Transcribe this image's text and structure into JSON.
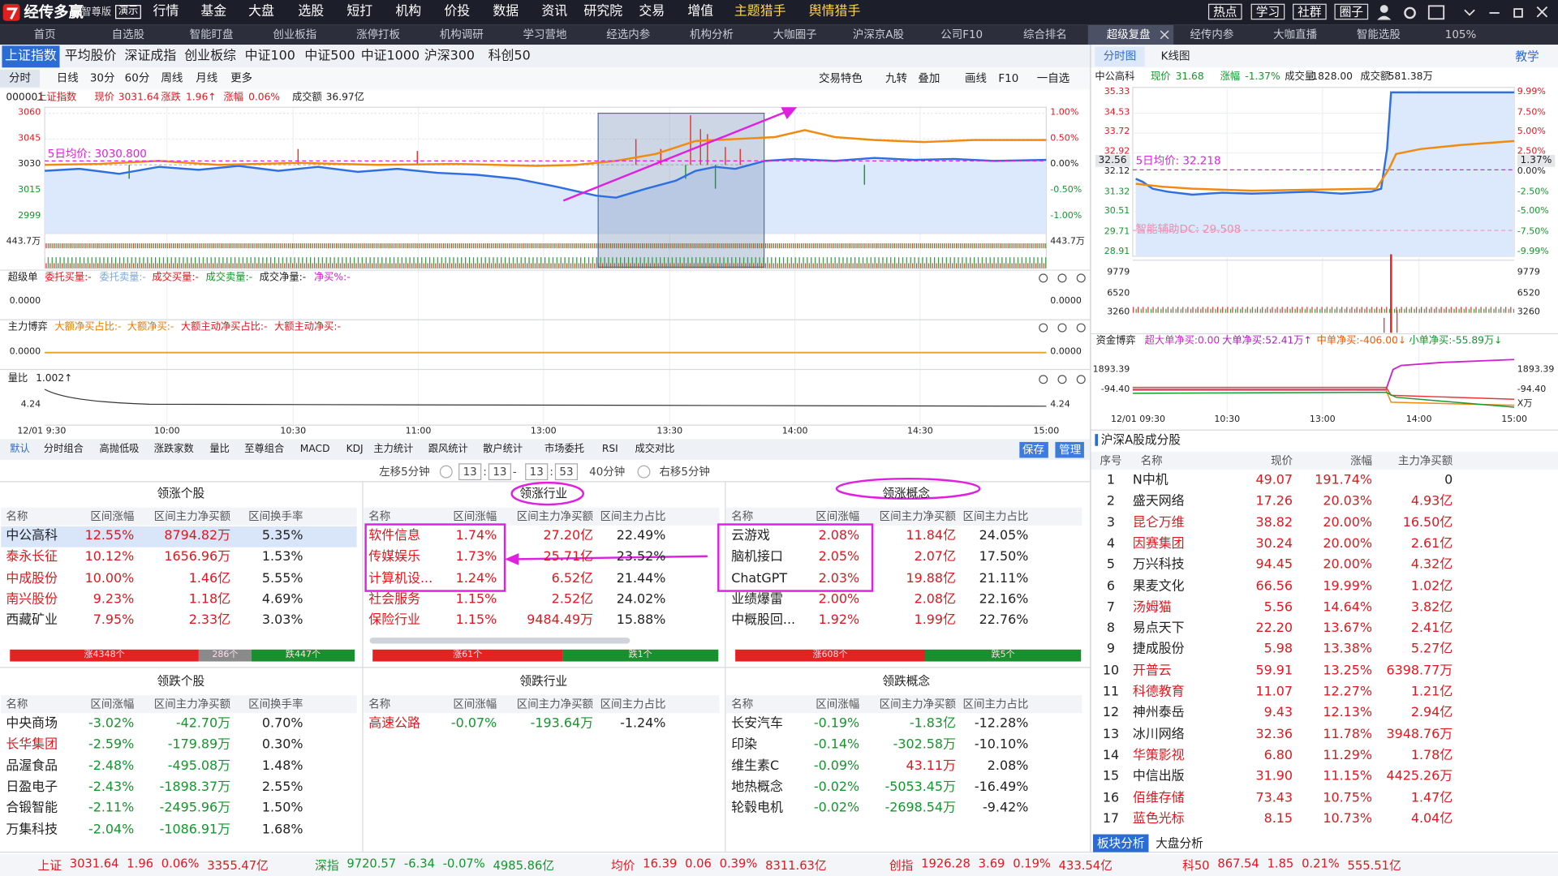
{
  "menu": {
    "logo": "经传多赢",
    "edition": "智尊版",
    "demo": "演示",
    "items": [
      "行情",
      "基金",
      "大盘",
      "选股",
      "短打",
      "机构",
      "价投",
      "数据",
      "资讯",
      "研究院",
      "交易",
      "增值",
      "主题猎手",
      "舆情猎手"
    ],
    "buttons": [
      "热点",
      "学习",
      "社群",
      "圈子"
    ]
  },
  "tabs": {
    "items": [
      "首页",
      "自选股",
      "智能盯盘",
      "创业板指",
      "涨停打板",
      "机构调研",
      "学习营地",
      "经选内参",
      "机构分析",
      "大咖圈子",
      "沪深京A股",
      "公司F10",
      "综合排名",
      "超级复盘",
      "经传内参",
      "大咖直播",
      "智能选股"
    ],
    "active": 13,
    "zoom": "105%"
  },
  "index_tabs": {
    "items": [
      "上证指数",
      "平均股价",
      "深证成指",
      "创业板综",
      "中证100",
      "中证500",
      "中证1000",
      "沪深300",
      "科创50"
    ],
    "active": 0
  },
  "period_tabs": {
    "items": [
      "分时",
      "日线",
      "30分",
      "60分",
      "周线",
      "月线",
      "更多"
    ],
    "active": 0
  },
  "chart_tools": [
    "交易特色",
    "九转",
    "叠加",
    "画线",
    "F10",
    "一自选"
  ],
  "main_chart": {
    "code": "000001",
    "name": "上证指数",
    "price_label": "现价",
    "price": "3031.64",
    "change_label": "涨跌",
    "change": "1.96↑",
    "pct_label": "涨幅",
    "pct": "0.06%",
    "amount_label": "成交额",
    "amount": "36.97亿",
    "avg_label": "5日均价: 3030.800",
    "yticks": [
      "3060",
      "3045",
      "3030",
      "3015",
      "2999"
    ],
    "pct_ticks": [
      "1.00%",
      "0.50%",
      "0.00%",
      "-0.50%",
      "-1.00%"
    ],
    "vol_tick": "443.7万",
    "xticks": [
      "12/01 9:30",
      "10:00",
      "10:30",
      "11:00",
      "13:00",
      "13:30",
      "14:00",
      "14:30",
      "15:00"
    ]
  },
  "panels": [
    {
      "title": "超级单",
      "labels": [
        {
          "text": "委托买量:-",
          "color": "#e0181e"
        },
        {
          "text": "委托卖量:-",
          "color": "#7fa8d8"
        },
        {
          "text": "成交买量:-",
          "color": "#e0181e"
        },
        {
          "text": "成交卖量:-",
          "color": "#11982a"
        },
        {
          "text": "成交净量:-",
          "color": "#222222"
        },
        {
          "text": "净买%:-",
          "color": "#d020d0"
        }
      ],
      "value": "0.0000"
    },
    {
      "title": "主力博弈",
      "labels": [
        {
          "text": "大额净买占比:-",
          "color": "#e87a00"
        },
        {
          "text": "大额净买:-",
          "color": "#e87a00"
        },
        {
          "text": "大额主动净买占比:-",
          "color": "#e0181e"
        },
        {
          "text": "大额主动净买:-",
          "color": "#e0181e"
        }
      ],
      "value": "0.0000"
    },
    {
      "title": "量比",
      "labels": [
        {
          "text": "1.002↑",
          "color": "#222222"
        }
      ],
      "value": "4.24"
    }
  ],
  "indicator_tabs": {
    "items": [
      "默认",
      "分时组合",
      "高抛低吸",
      "涨跌家数",
      "量比",
      "至尊组合",
      "MACD",
      "KDJ",
      "主力统计",
      "跟风统计",
      "散户统计",
      "市场委托",
      "RSI",
      "成交对比"
    ],
    "active": 0,
    "buttons": [
      "保存",
      "管理"
    ]
  },
  "time_nav": {
    "left": "左移5分钟",
    "start_h": "13",
    "sep1": ":",
    "start_m": "13",
    "dash": "-",
    "end_h": "13",
    "sep2": ":",
    "end_m": "53",
    "span": "40分钟",
    "right": "右移5分钟"
  },
  "name_highlight_color": "#e0181e",
  "boards": [
    {
      "title": "领涨个股",
      "headers": [
        "名称",
        "区间涨幅",
        "区间主力净买额",
        "区间换手率"
      ],
      "rows": [
        [
          "中公高科",
          "12.55%",
          "8794.82万",
          "5.35%"
        ],
        [
          "泰永长征",
          "10.12%",
          "1656.96万",
          "1.53%"
        ],
        [
          "中成股份",
          "10.00%",
          "1.46亿",
          "5.55%"
        ],
        [
          "南兴股份",
          "9.23%",
          "1.18亿",
          "4.69%"
        ],
        [
          "西藏矿业",
          "7.95%",
          "2.33亿",
          "3.03%"
        ]
      ],
      "highlight_names": [
        1,
        2,
        3
      ],
      "selected": 0,
      "breadth": [
        {
          "text": "涨4348个",
          "color": "#e52222"
        },
        {
          "text": "286个",
          "color": "#8a8a8a"
        },
        {
          "text": "跌447个",
          "color": "#1a8f2f"
        }
      ]
    },
    {
      "title": "领涨行业",
      "headers": [
        "名称",
        "区间涨幅",
        "区间主力净买额",
        "区间主力占比"
      ],
      "rows": [
        [
          "软件信息",
          "1.74%",
          "27.20亿",
          "22.49%"
        ],
        [
          "传媒娱乐",
          "1.73%",
          "25.71亿",
          "23.52%"
        ],
        [
          "计算机设...",
          "1.24%",
          "6.52亿",
          "21.44%"
        ],
        [
          "社会服务",
          "1.15%",
          "2.52亿",
          "24.02%"
        ],
        [
          "保险行业",
          "1.15%",
          "9484.49万",
          "15.88%"
        ]
      ],
      "highlight_names": [
        0,
        1,
        2,
        3,
        4
      ],
      "breadth": [
        {
          "text": "涨61个",
          "color": "#e52222"
        },
        {
          "text": "跌1个",
          "color": "#1a8f2f"
        }
      ]
    },
    {
      "title": "领涨概念",
      "headers": [
        "名称",
        "区间涨幅",
        "区间主力净买额",
        "区间主力占比"
      ],
      "rows": [
        [
          "云游戏",
          "2.08%",
          "11.84亿",
          "24.05%"
        ],
        [
          "脑机接口",
          "2.05%",
          "2.07亿",
          "17.50%"
        ],
        [
          "ChatGPT",
          "2.03%",
          "19.88亿",
          "21.11%"
        ],
        [
          "业绩爆雷",
          "2.00%",
          "2.08亿",
          "22.16%"
        ],
        [
          "中概股回...",
          "1.92%",
          "1.99亿",
          "22.76%"
        ]
      ],
      "highlight_names": [],
      "breadth": [
        {
          "text": "涨608个",
          "color": "#e52222"
        },
        {
          "text": "跌5个",
          "color": "#1a8f2f"
        }
      ]
    },
    {
      "title": "领跌个股",
      "headers": [
        "名称",
        "区间涨幅",
        "区间主力净买额",
        "区间换手率"
      ],
      "rows": [
        [
          "中央商场",
          "-3.02%",
          "-42.70万",
          "0.70%"
        ],
        [
          "长华集团",
          "-2.59%",
          "-179.89万",
          "0.30%"
        ],
        [
          "品渥食品",
          "-2.48%",
          "-495.08万",
          "1.48%"
        ],
        [
          "日盈电子",
          "-2.43%",
          "-1898.37万",
          "2.55%"
        ],
        [
          "合锻智能",
          "-2.11%",
          "-2495.96万",
          "1.50%"
        ],
        [
          "万集科技",
          "-2.04%",
          "-1086.91万",
          "1.68%"
        ]
      ],
      "highlight_names": [
        1
      ]
    },
    {
      "title": "领跌行业",
      "headers": [
        "名称",
        "区间涨幅",
        "区间主力净买额",
        "区间主力占比"
      ],
      "rows": [
        [
          "高速公路",
          "-0.07%",
          "-193.64万",
          "-1.24%"
        ]
      ],
      "highlight_names": [
        0
      ]
    },
    {
      "title": "领跌概念",
      "headers": [
        "名称",
        "区间涨幅",
        "区间主力净买额",
        "区间主力占比"
      ],
      "rows": [
        [
          "长安汽车",
          "-0.19%",
          "-1.83亿",
          "-12.28%"
        ],
        [
          "印染",
          "-0.14%",
          "-302.58万",
          "-10.10%"
        ],
        [
          "维生素C",
          "-0.09%",
          "43.11万",
          "2.08%"
        ],
        [
          "地热概念",
          "-0.02%",
          "-5053.45万",
          "-16.49%"
        ],
        [
          "轮毂电机",
          "-0.02%",
          "-2698.54万",
          "-9.42%"
        ]
      ],
      "highlight_names": []
    }
  ],
  "right_panel": {
    "tabs": [
      "分时图",
      "K线图"
    ],
    "active": 0,
    "teach": "教学",
    "name": "中公高科",
    "price_label": "现价",
    "price": "31.68",
    "pct_label": "涨幅",
    "pct": "-1.37%",
    "vol_label": "成交量",
    "vol": "1828.00",
    "amount_label": "成交额",
    "amount": "581.38万",
    "yticks": [
      "35.33",
      "34.53",
      "33.72",
      "32.92",
      "32.12",
      "31.32",
      "30.51",
      "29.71",
      "28.91"
    ],
    "pct_ticks": [
      "9.99%",
      "7.50%",
      "5.00%",
      "2.50%",
      "0.00%",
      "-2.50%",
      "-5.00%",
      "-7.50%",
      "-9.99%"
    ],
    "cur": "32.56",
    "cur_pct": "1.37%",
    "avg_label": "5日均价: 32.218",
    "dc_label": "智能辅助DC: 29.508",
    "vol_ticks": [
      "9779",
      "6520",
      "3260"
    ],
    "fund_title": "资金博弈",
    "fund_labels": [
      {
        "text": "超大单净买:0.00",
        "color": "#d020d0"
      },
      {
        "text": "大单净买:52.41万↑",
        "color": "#b01cc0"
      },
      {
        "text": "中单净买:-406.00↓",
        "color": "#f05a00"
      },
      {
        "text": "小单净买:-55.89万↓",
        "color": "#11982a"
      }
    ],
    "fund_ticks": [
      "1893.39",
      "-94.40"
    ],
    "fund_unit": "X万",
    "xticks": [
      "12/01 09:30",
      "10:30",
      "13:00",
      "14:00",
      "15:00"
    ]
  },
  "ranking": {
    "title": "沪深A股成分股",
    "headers": [
      "序号",
      "名称",
      "现价",
      "涨幅",
      "主力净买额"
    ],
    "rows": [
      [
        "1",
        "N中机",
        "49.07",
        "191.74%",
        "0"
      ],
      [
        "2",
        "盛天网络",
        "17.26",
        "20.03%",
        "4.93亿"
      ],
      [
        "3",
        "昆仑万维",
        "38.82",
        "20.00%",
        "16.50亿"
      ],
      [
        "4",
        "因赛集团",
        "30.24",
        "20.00%",
        "2.61亿"
      ],
      [
        "5",
        "万兴科技",
        "94.45",
        "20.00%",
        "4.32亿"
      ],
      [
        "6",
        "果麦文化",
        "66.56",
        "19.99%",
        "1.02亿"
      ],
      [
        "7",
        "汤姆猫",
        "5.56",
        "14.64%",
        "3.82亿"
      ],
      [
        "8",
        "易点天下",
        "22.20",
        "13.67%",
        "2.41亿"
      ],
      [
        "9",
        "捷成股份",
        "5.98",
        "13.38%",
        "5.27亿"
      ],
      [
        "10",
        "开普云",
        "59.91",
        "13.25%",
        "6398.77万"
      ],
      [
        "11",
        "科德教育",
        "11.07",
        "12.27%",
        "1.21亿"
      ],
      [
        "12",
        "神州泰岳",
        "9.43",
        "12.13%",
        "2.94亿"
      ],
      [
        "13",
        "冰川网络",
        "32.36",
        "11.78%",
        "3948.76万"
      ],
      [
        "14",
        "华策影视",
        "6.80",
        "11.29%",
        "1.78亿"
      ],
      [
        "15",
        "中信出版",
        "31.90",
        "11.15%",
        "4425.26万"
      ],
      [
        "16",
        "佰维存储",
        "73.43",
        "10.75%",
        "1.47亿"
      ],
      [
        "17",
        "蓝色光标",
        "8.15",
        "10.73%",
        "4.04亿"
      ]
    ],
    "highlight_names": [
      2,
      3,
      6,
      9,
      10,
      13,
      15,
      16
    ]
  },
  "bottom_tabs": {
    "items": [
      "板块分析",
      "大盘分析"
    ],
    "active": 0
  },
  "status_bar": [
    {
      "name": "上证",
      "values": [
        "3031.64",
        "1.96",
        "0.06%",
        "3355.47亿"
      ],
      "color": "#e0181e"
    },
    {
      "name": "深指",
      "values": [
        "9720.57",
        "-6.34",
        "-0.07%",
        "4985.86亿"
      ],
      "color": "#11982a"
    },
    {
      "name": "均价",
      "values": [
        "16.39",
        "0.06",
        "0.39%",
        "8311.63亿"
      ],
      "color": "#e0181e"
    },
    {
      "name": "创指",
      "values": [
        "1926.28",
        "3.69",
        "0.19%",
        "433.54亿"
      ],
      "color": "#e0181e"
    },
    {
      "name": "科50",
      "values": [
        "867.54",
        "1.85",
        "0.21%",
        "555.51亿"
      ],
      "color": "#e0181e"
    }
  ]
}
